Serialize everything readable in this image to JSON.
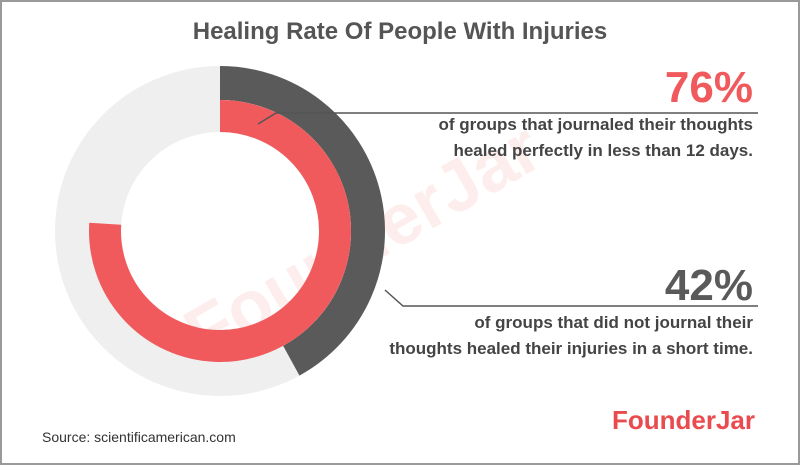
{
  "title": "Healing Rate Of People With Injuries",
  "source": "Source: scientificamerican.com",
  "brand": "FounderJar",
  "watermark": "FounderJar",
  "colors": {
    "red": "#f05a5d",
    "dark": "#5a5a5a",
    "track": "#efefef",
    "brand": "#e94b4e"
  },
  "stats": [
    {
      "percent_label": "76%",
      "line1": "of groups that journaled their thoughts",
      "line2": "healed perfectly in less than 12 days."
    },
    {
      "percent_label": "42%",
      "line1": "of groups that did not journal their",
      "line2": "thoughts healed their injuries in a short time."
    }
  ],
  "chart_data": {
    "type": "pie",
    "subtype": "radial-donut",
    "title": "Healing Rate Of People With Injuries",
    "series": [
      {
        "name": "of groups that journaled their thoughts healed perfectly in less than 12 days.",
        "value": 76,
        "color": "#f05a5d",
        "ring": "inner"
      },
      {
        "name": "of groups that did not journal their thoughts healed their injuries in a short time.",
        "value": 42,
        "color": "#5a5a5a",
        "ring": "outer"
      }
    ],
    "max": 100
  }
}
